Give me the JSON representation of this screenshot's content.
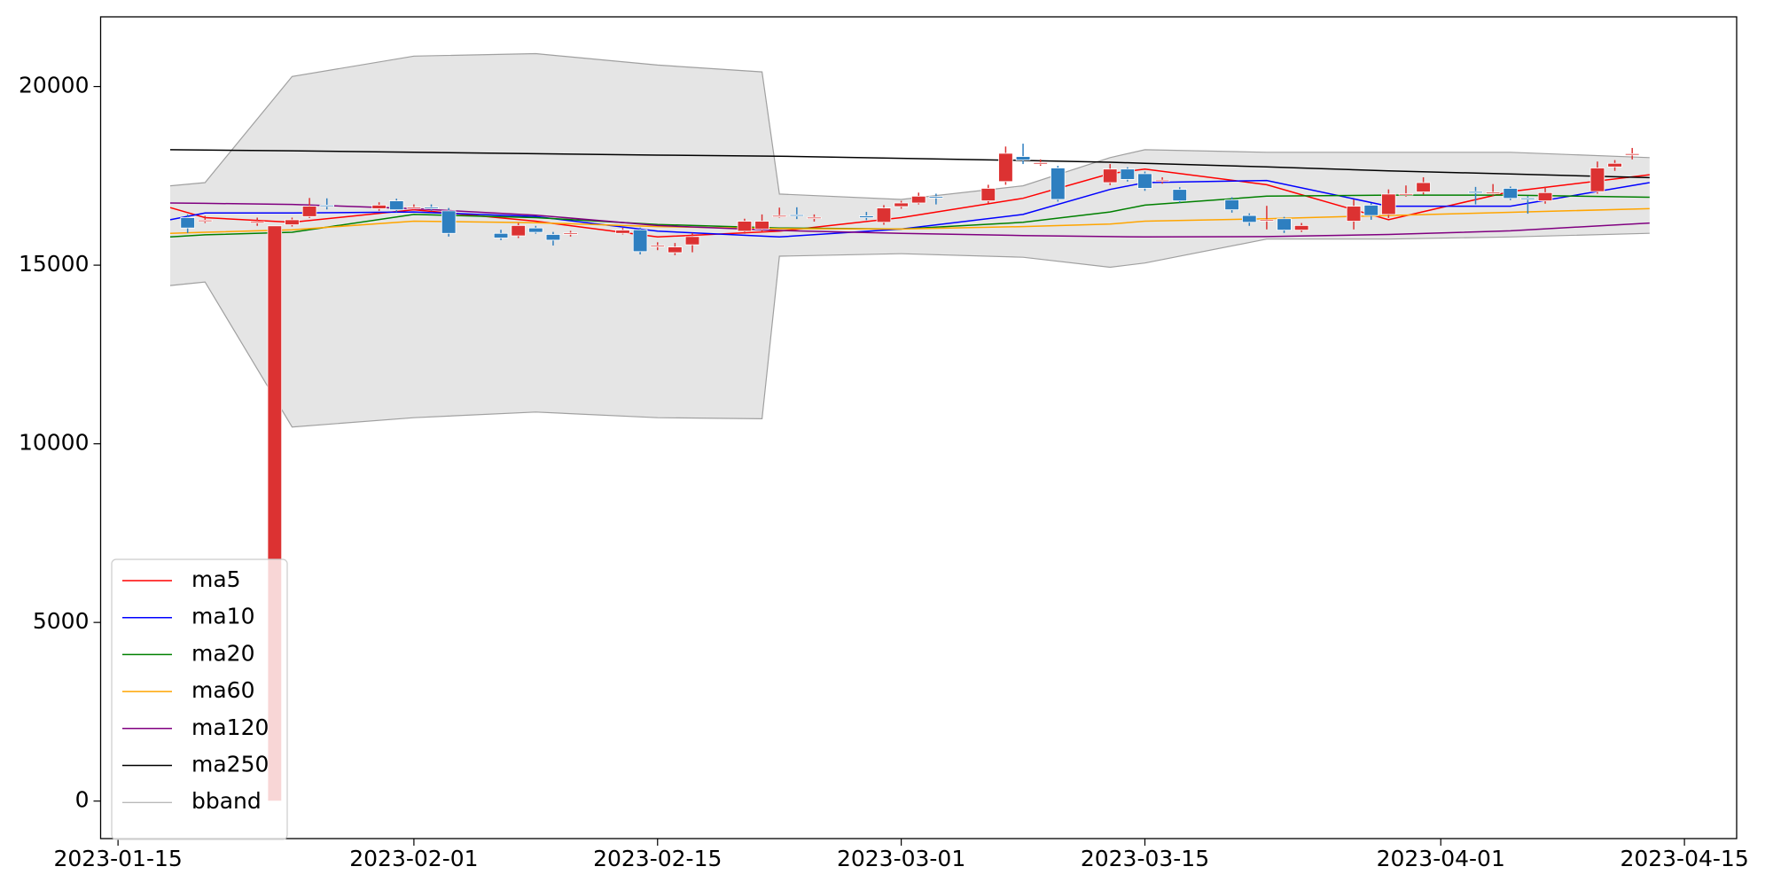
{
  "chart_data": {
    "type": "candlestick",
    "xlim": [
      "2023-01-14",
      "2023-04-18"
    ],
    "xticks": [
      "2023-01-15",
      "2023-02-01",
      "2023-02-15",
      "2023-03-01",
      "2023-03-15",
      "2023-04-01",
      "2023-04-15"
    ],
    "ylim": [
      -1050,
      21950
    ],
    "yticks": [
      0,
      5000,
      10000,
      15000,
      20000
    ],
    "legend": "lower left",
    "candles": {
      "up_color": "#dc3232",
      "down_color": "#2e7fc0",
      "x": [
        "2023-01-19",
        "2023-01-20",
        "2023-01-23",
        "2023-01-24",
        "2023-01-25",
        "2023-01-26",
        "2023-01-27",
        "2023-01-30",
        "2023-01-31",
        "2023-02-01",
        "2023-02-02",
        "2023-02-03",
        "2023-02-06",
        "2023-02-07",
        "2023-02-08",
        "2023-02-09",
        "2023-02-10",
        "2023-02-13",
        "2023-02-14",
        "2023-02-15",
        "2023-02-16",
        "2023-02-17",
        "2023-02-20",
        "2023-02-21",
        "2023-02-22",
        "2023-02-23",
        "2023-02-24",
        "2023-02-27",
        "2023-02-28",
        "2023-03-01",
        "2023-03-02",
        "2023-03-03",
        "2023-03-06",
        "2023-03-07",
        "2023-03-08",
        "2023-03-09",
        "2023-03-10",
        "2023-03-13",
        "2023-03-14",
        "2023-03-15",
        "2023-03-16",
        "2023-03-17",
        "2023-03-20",
        "2023-03-21",
        "2023-03-22",
        "2023-03-23",
        "2023-03-24",
        "2023-03-27",
        "2023-03-28",
        "2023-03-29",
        "2023-03-30",
        "2023-03-31",
        "2023-04-03",
        "2023-04-04",
        "2023-04-05",
        "2023-04-06",
        "2023-04-07",
        "2023-04-10",
        "2023-04-11",
        "2023-04-12"
      ],
      "open": [
        16330,
        16240,
        16180,
        0,
        16130,
        16360,
        16680,
        16580,
        16800,
        16600,
        16620,
        16520,
        15890,
        15820,
        16040,
        15860,
        15880,
        15890,
        15990,
        15530,
        15350,
        15570,
        15950,
        16010,
        16370,
        16410,
        16310,
        16380,
        16200,
        16640,
        16740,
        16920,
        16800,
        17340,
        18040,
        17830,
        17720,
        17310,
        17690,
        17560,
        17360,
        17120,
        16830,
        16390,
        16250,
        16300,
        15980,
        16230,
        16680,
        16420,
        16980,
        17050,
        17060,
        17000,
        17150,
        16880,
        16800,
        17060,
        17750,
        18080
      ],
      "high": [
        16420,
        16380,
        16330,
        16100,
        16330,
        16880,
        16870,
        16760,
        16860,
        16700,
        16700,
        16600,
        15990,
        16180,
        16100,
        15930,
        15960,
        16040,
        16050,
        15640,
        15620,
        15900,
        16300,
        16420,
        16610,
        16620,
        16420,
        16490,
        16680,
        16800,
        17030,
        17000,
        17250,
        18320,
        18400,
        17960,
        17780,
        17830,
        17740,
        17620,
        17460,
        17180,
        16900,
        16450,
        16660,
        16350,
        16180,
        16840,
        16740,
        17120,
        17230,
        17460,
        17190,
        17270,
        17200,
        16930,
        17200,
        17900,
        17940,
        18280
      ],
      "low": [
        15900,
        16180,
        16100,
        0,
        16080,
        16320,
        16560,
        16520,
        16480,
        16560,
        16520,
        15800,
        15700,
        15760,
        15880,
        15550,
        15800,
        15860,
        15300,
        15420,
        15280,
        15360,
        15880,
        15950,
        16330,
        16290,
        16220,
        16260,
        16130,
        16580,
        16700,
        16700,
        16730,
        17250,
        17830,
        17780,
        16780,
        17240,
        17340,
        17080,
        17280,
        16750,
        16470,
        16100,
        16000,
        15900,
        15930,
        16000,
        16270,
        16320,
        16920,
        16980,
        16700,
        16950,
        16820,
        16440,
        16720,
        17000,
        17640,
        17960
      ],
      "close": [
        16040,
        16260,
        16220,
        16100,
        16270,
        16650,
        16650,
        16680,
        16550,
        16620,
        16580,
        15890,
        15760,
        16110,
        15920,
        15700,
        15900,
        15980,
        15380,
        15550,
        15510,
        15800,
        16230,
        16230,
        16390,
        16390,
        16340,
        16330,
        16600,
        16740,
        16930,
        16880,
        17150,
        18130,
        17940,
        17870,
        16840,
        17690,
        17400,
        17150,
        17380,
        16800,
        16550,
        16200,
        16270,
        15980,
        16110,
        16650,
        16390,
        16990,
        17000,
        17310,
        17020,
        17040,
        16870,
        16840,
        17030,
        17720,
        17850,
        18120
      ]
    },
    "series": [
      {
        "name": "ma5",
        "color": "#ff0000",
        "x": [
          "2023-01-18",
          "2023-01-20",
          "2023-01-25",
          "2023-02-01",
          "2023-02-08",
          "2023-02-15",
          "2023-02-22",
          "2023-03-01",
          "2023-03-08",
          "2023-03-13",
          "2023-03-15",
          "2023-03-22",
          "2023-03-29",
          "2023-04-05",
          "2023-04-13"
        ],
        "values": [
          16610,
          16330,
          16200,
          16550,
          16230,
          15790,
          15950,
          16330,
          16870,
          17560,
          17690,
          17250,
          16270,
          17060,
          17530
        ]
      },
      {
        "name": "ma10",
        "color": "#0000ff",
        "x": [
          "2023-01-18",
          "2023-01-20",
          "2023-01-25",
          "2023-02-01",
          "2023-02-08",
          "2023-02-15",
          "2023-02-22",
          "2023-03-01",
          "2023-03-08",
          "2023-03-13",
          "2023-03-15",
          "2023-03-22",
          "2023-03-29",
          "2023-04-05",
          "2023-04-13"
        ],
        "values": [
          16270,
          16460,
          16460,
          16490,
          16360,
          15950,
          15790,
          16010,
          16420,
          17120,
          17310,
          17370,
          16650,
          16650,
          17310
        ]
      },
      {
        "name": "ma20",
        "color": "#008000",
        "x": [
          "2023-01-18",
          "2023-01-20",
          "2023-01-25",
          "2023-02-01",
          "2023-02-08",
          "2023-02-15",
          "2023-02-22",
          "2023-03-01",
          "2023-03-08",
          "2023-03-13",
          "2023-03-15",
          "2023-03-22",
          "2023-03-29",
          "2023-04-05",
          "2023-04-13"
        ],
        "values": [
          15790,
          15850,
          15920,
          16420,
          16330,
          16140,
          16040,
          16010,
          16200,
          16490,
          16680,
          16930,
          16960,
          16960,
          16900
        ]
      },
      {
        "name": "ma60",
        "color": "#ffa500",
        "x": [
          "2023-01-18",
          "2023-01-20",
          "2023-01-25",
          "2023-02-01",
          "2023-02-08",
          "2023-02-15",
          "2023-02-22",
          "2023-03-01",
          "2023-03-08",
          "2023-03-13",
          "2023-03-15",
          "2023-03-22",
          "2023-03-29",
          "2023-04-05",
          "2023-04-13"
        ],
        "values": [
          15890,
          15920,
          15990,
          16230,
          16190,
          16080,
          16020,
          16010,
          16080,
          16150,
          16230,
          16300,
          16390,
          16480,
          16580
        ]
      },
      {
        "name": "ma120",
        "color": "#800080",
        "x": [
          "2023-01-18",
          "2023-01-20",
          "2023-01-25",
          "2023-02-01",
          "2023-02-08",
          "2023-02-15",
          "2023-02-22",
          "2023-03-01",
          "2023-03-08",
          "2023-03-13",
          "2023-03-15",
          "2023-03-22",
          "2023-03-29",
          "2023-04-05",
          "2023-04-13"
        ],
        "values": [
          16740,
          16730,
          16700,
          16580,
          16400,
          16110,
          15970,
          15890,
          15830,
          15800,
          15790,
          15800,
          15860,
          15960,
          16180
        ]
      },
      {
        "name": "ma250",
        "color": "#000000",
        "x": [
          "2023-01-18",
          "2023-01-20",
          "2023-01-25",
          "2023-02-01",
          "2023-02-08",
          "2023-02-15",
          "2023-02-22",
          "2023-03-01",
          "2023-03-08",
          "2023-03-13",
          "2023-03-15",
          "2023-03-22",
          "2023-03-29",
          "2023-04-05",
          "2023-04-13"
        ],
        "values": [
          18230,
          18220,
          18200,
          18160,
          18120,
          18080,
          18050,
          17990,
          17930,
          17880,
          17850,
          17750,
          17640,
          17550,
          17450
        ]
      }
    ],
    "bband": {
      "name": "bband",
      "color": "#a0a0a0",
      "fill": "#e5e5e5",
      "x": [
        "2023-01-18",
        "2023-01-20",
        "2023-01-25",
        "2023-02-01",
        "2023-02-08",
        "2023-02-15",
        "2023-02-21",
        "2023-02-22",
        "2023-03-01",
        "2023-03-08",
        "2023-03-13",
        "2023-03-15",
        "2023-03-22",
        "2023-03-29",
        "2023-04-05",
        "2023-04-13"
      ],
      "upper": [
        17220,
        17310,
        20280,
        20850,
        20920,
        20600,
        20410,
        16990,
        16840,
        17220,
        18010,
        18230,
        18160,
        18160,
        18160,
        18010
      ],
      "lower": [
        14430,
        14530,
        10470,
        10730,
        10890,
        10730,
        10700,
        15250,
        15320,
        15220,
        14940,
        15060,
        15730,
        15730,
        15790,
        15890
      ]
    }
  }
}
